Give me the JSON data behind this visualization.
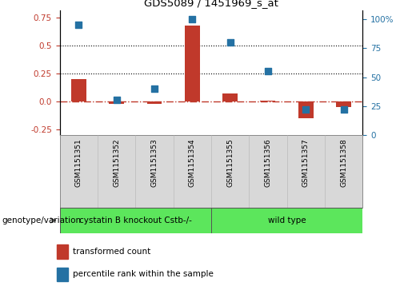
{
  "title": "GDS5089 / 1451969_s_at",
  "samples": [
    "GSM1151351",
    "GSM1151352",
    "GSM1151353",
    "GSM1151354",
    "GSM1151355",
    "GSM1151356",
    "GSM1151357",
    "GSM1151358"
  ],
  "transformed_count": [
    0.2,
    -0.02,
    -0.02,
    0.68,
    0.07,
    0.01,
    -0.15,
    -0.05
  ],
  "percentile_rank": [
    95,
    30,
    40,
    100,
    80,
    55,
    22,
    22
  ],
  "group1_label": "cystatin B knockout Cstb-/-",
  "group1_count": 4,
  "group2_label": "wild type",
  "group2_count": 4,
  "group_label_prefix": "genotype/variation",
  "left_ylim": [
    -0.3,
    0.82
  ],
  "right_ylim": [
    0,
    108
  ],
  "left_yticks": [
    -0.25,
    0.0,
    0.25,
    0.5,
    0.75
  ],
  "right_yticks": [
    0,
    25,
    50,
    75,
    100
  ],
  "hline_zero": 0.0,
  "hline_dotted": [
    0.25,
    0.5
  ],
  "bar_color": "#c0392b",
  "dot_color": "#2471a3",
  "sample_bg_color": "#d8d8d8",
  "group_color": "#5ce65c",
  "legend_bar_label": "transformed count",
  "legend_dot_label": "percentile rank within the sample",
  "bar_width": 0.4,
  "dot_size": 28
}
